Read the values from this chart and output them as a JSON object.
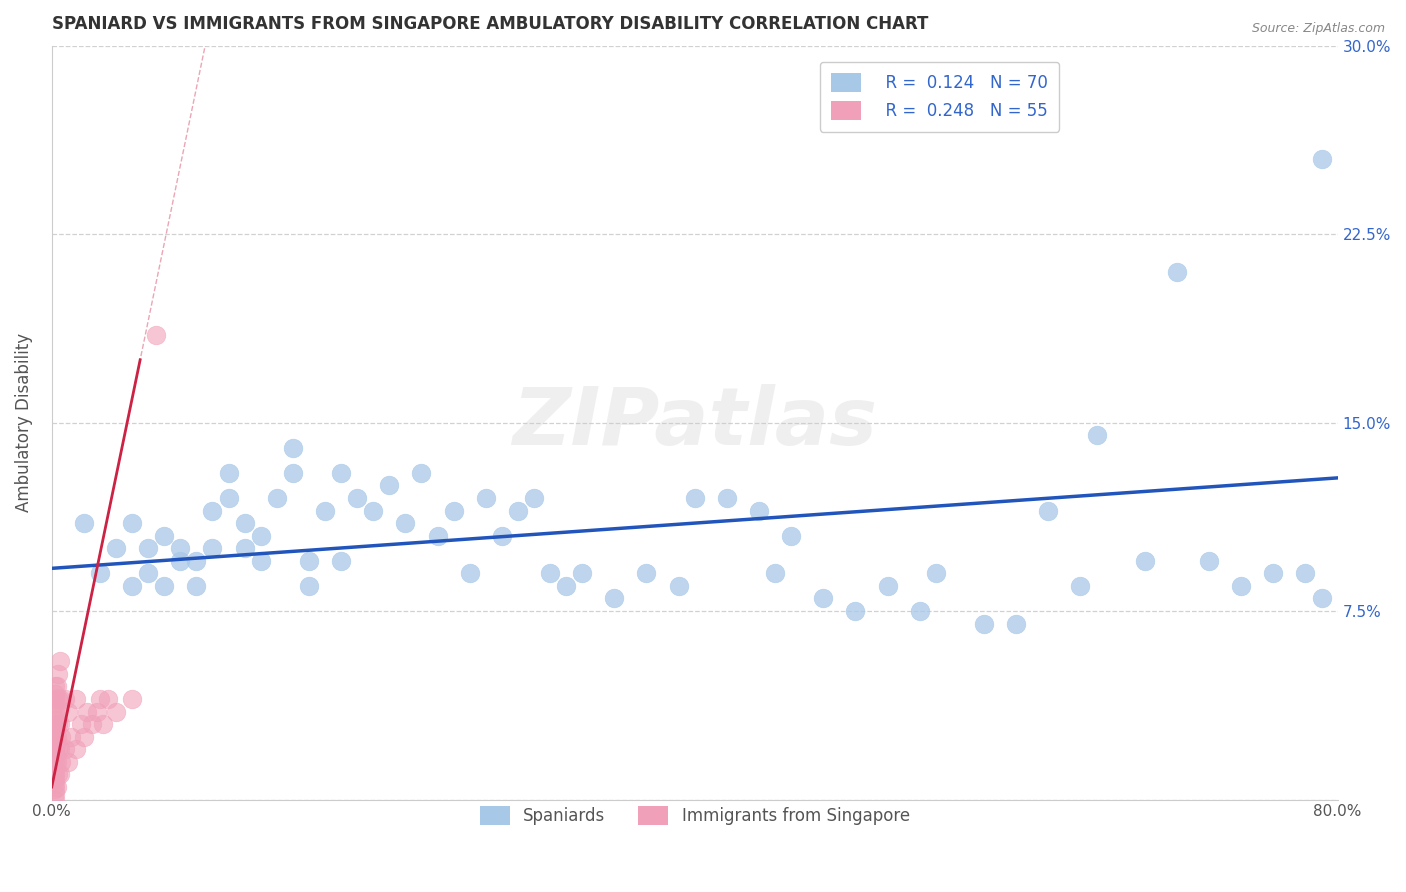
{
  "title": "SPANIARD VS IMMIGRANTS FROM SINGAPORE AMBULATORY DISABILITY CORRELATION CHART",
  "source": "Source: ZipAtlas.com",
  "ylabel": "Ambulatory Disability",
  "xlim": [
    0,
    0.8
  ],
  "ylim": [
    0,
    0.3
  ],
  "xticks": [
    0.0,
    0.1,
    0.2,
    0.3,
    0.4,
    0.5,
    0.6,
    0.7,
    0.8
  ],
  "xticklabels": [
    "0.0%",
    "",
    "",
    "",
    "",
    "",
    "",
    "",
    "80.0%"
  ],
  "yticks": [
    0.0,
    0.075,
    0.15,
    0.225,
    0.3
  ],
  "yticklabels_right": [
    "",
    "7.5%",
    "15.0%",
    "22.5%",
    "30.0%"
  ],
  "R_blue": 0.124,
  "N_blue": 70,
  "R_pink": 0.248,
  "N_pink": 55,
  "blue_color": "#A8C8E8",
  "pink_color": "#F0A0B8",
  "blue_line_color": "#2255BB",
  "pink_line_color": "#CC2244",
  "blue_scatter_x": [
    0.02,
    0.03,
    0.04,
    0.05,
    0.05,
    0.06,
    0.06,
    0.07,
    0.07,
    0.08,
    0.08,
    0.09,
    0.09,
    0.1,
    0.1,
    0.11,
    0.11,
    0.12,
    0.12,
    0.13,
    0.13,
    0.14,
    0.15,
    0.15,
    0.16,
    0.16,
    0.17,
    0.18,
    0.18,
    0.19,
    0.2,
    0.21,
    0.22,
    0.23,
    0.24,
    0.25,
    0.26,
    0.27,
    0.28,
    0.29,
    0.3,
    0.31,
    0.32,
    0.33,
    0.35,
    0.37,
    0.39,
    0.4,
    0.42,
    0.44,
    0.45,
    0.46,
    0.48,
    0.5,
    0.52,
    0.54,
    0.55,
    0.58,
    0.6,
    0.62,
    0.64,
    0.65,
    0.68,
    0.7,
    0.72,
    0.74,
    0.76,
    0.78,
    0.79,
    0.79
  ],
  "blue_scatter_y": [
    0.11,
    0.09,
    0.1,
    0.085,
    0.11,
    0.09,
    0.1,
    0.085,
    0.105,
    0.095,
    0.1,
    0.085,
    0.095,
    0.1,
    0.115,
    0.13,
    0.12,
    0.1,
    0.11,
    0.095,
    0.105,
    0.12,
    0.13,
    0.14,
    0.085,
    0.095,
    0.115,
    0.095,
    0.13,
    0.12,
    0.115,
    0.125,
    0.11,
    0.13,
    0.105,
    0.115,
    0.09,
    0.12,
    0.105,
    0.115,
    0.12,
    0.09,
    0.085,
    0.09,
    0.08,
    0.09,
    0.085,
    0.12,
    0.12,
    0.115,
    0.09,
    0.105,
    0.08,
    0.075,
    0.085,
    0.075,
    0.09,
    0.07,
    0.07,
    0.115,
    0.085,
    0.145,
    0.095,
    0.21,
    0.095,
    0.085,
    0.09,
    0.09,
    0.255,
    0.08
  ],
  "pink_scatter_x": [
    0.002,
    0.002,
    0.002,
    0.002,
    0.002,
    0.002,
    0.002,
    0.002,
    0.002,
    0.002,
    0.002,
    0.002,
    0.002,
    0.002,
    0.002,
    0.002,
    0.002,
    0.002,
    0.002,
    0.002,
    0.003,
    0.003,
    0.003,
    0.003,
    0.003,
    0.004,
    0.004,
    0.004,
    0.004,
    0.004,
    0.005,
    0.005,
    0.005,
    0.005,
    0.005,
    0.006,
    0.006,
    0.008,
    0.008,
    0.01,
    0.01,
    0.012,
    0.015,
    0.015,
    0.018,
    0.02,
    0.022,
    0.025,
    0.028,
    0.03,
    0.032,
    0.035,
    0.04,
    0.05,
    0.065
  ],
  "pink_scatter_y": [
    0.0,
    0.002,
    0.004,
    0.006,
    0.008,
    0.01,
    0.012,
    0.015,
    0.018,
    0.02,
    0.022,
    0.025,
    0.028,
    0.03,
    0.032,
    0.035,
    0.038,
    0.04,
    0.042,
    0.045,
    0.005,
    0.015,
    0.025,
    0.035,
    0.045,
    0.01,
    0.02,
    0.03,
    0.04,
    0.05,
    0.01,
    0.02,
    0.03,
    0.04,
    0.055,
    0.015,
    0.025,
    0.02,
    0.04,
    0.015,
    0.035,
    0.025,
    0.02,
    0.04,
    0.03,
    0.025,
    0.035,
    0.03,
    0.035,
    0.04,
    0.03,
    0.04,
    0.035,
    0.04,
    0.185
  ],
  "blue_line_x": [
    0.0,
    0.8
  ],
  "blue_line_y": [
    0.092,
    0.128
  ],
  "pink_line_x": [
    0.0,
    0.055
  ],
  "pink_line_y": [
    0.005,
    0.175
  ]
}
